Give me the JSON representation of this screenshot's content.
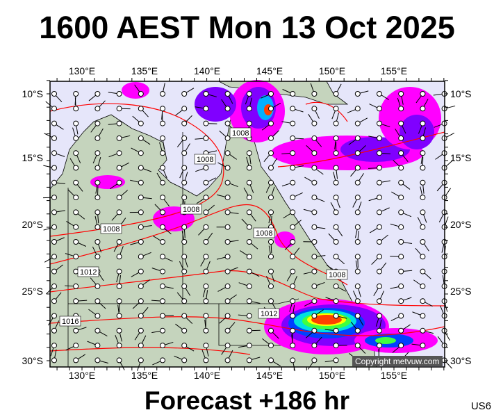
{
  "header": {
    "title": "1600 AEST Mon 13 Oct 2025"
  },
  "footer": {
    "forecast": "Forecast +186 hr",
    "code": "US6"
  },
  "map": {
    "lon_labels": [
      "130°E",
      "135°E",
      "140°E",
      "145°E",
      "150°E",
      "155°E"
    ],
    "lat_labels": [
      "10°S",
      "15°S",
      "20°S",
      "25°S",
      "30°S"
    ],
    "isobar_labels": [
      "1008",
      "1008",
      "1008",
      "1008",
      "1008",
      "1008",
      "1012",
      "1012",
      "1016"
    ],
    "copyright": "Copyright metvuw.com",
    "colors": {
      "ocean": "#e6e6fa",
      "land": "#c5d4bd",
      "isobar": "#ff0000",
      "rain_light": "#ff00ff",
      "rain_mod": "#8000ff",
      "rain_blue": "#0040ff",
      "rain_cyan": "#00e0e0",
      "rain_green": "#40ff40",
      "rain_yellow": "#ffff00",
      "rain_heavy": "#ff4000"
    }
  }
}
